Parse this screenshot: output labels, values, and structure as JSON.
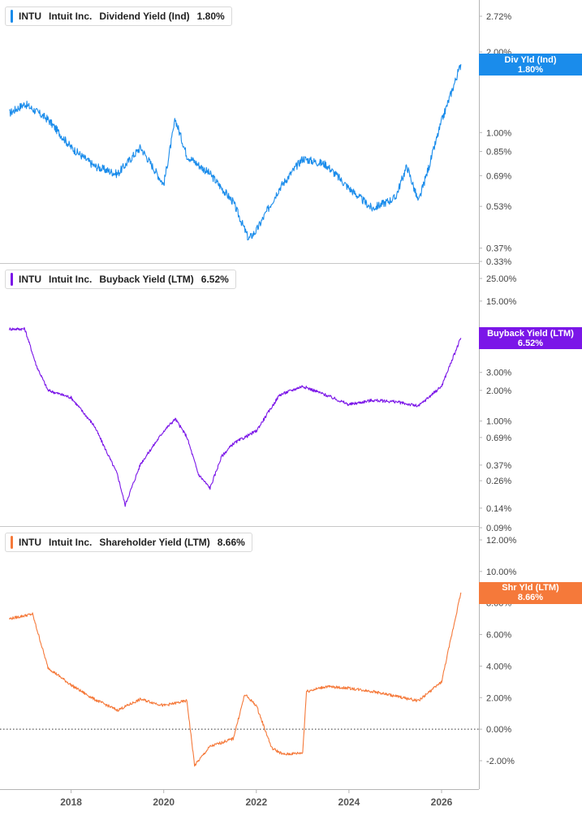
{
  "chart_data": [
    {
      "type": "line",
      "ticker": "INTU",
      "company": "Intuit Inc.",
      "metric": "Dividend Yield (Ind)",
      "current_value": "1.80%",
      "badge_label": "Div Yld (Ind)",
      "badge_value": "1.80%",
      "color": "#1a8ceb",
      "scale": "log",
      "ylim": [
        0.33,
        3.0
      ],
      "y_ticks": [
        "2.72%",
        "2.00%",
        "1.00%",
        "0.85%",
        "0.69%",
        "0.53%",
        "0.37%",
        "0.33%"
      ],
      "x": [
        "2016-09",
        "2017-01",
        "2017-07",
        "2018-01",
        "2018-07",
        "2019-01",
        "2019-07",
        "2020-01",
        "2020-04",
        "2020-07",
        "2021-01",
        "2021-07",
        "2021-11",
        "2022-01",
        "2022-07",
        "2023-01",
        "2023-07",
        "2024-01",
        "2024-07",
        "2025-01",
        "2025-04",
        "2025-07",
        "2025-10",
        "2026-01",
        "2026-06"
      ],
      "values": [
        1.18,
        1.28,
        1.12,
        0.88,
        0.75,
        0.7,
        0.88,
        0.64,
        1.12,
        0.82,
        0.7,
        0.55,
        0.4,
        0.43,
        0.62,
        0.8,
        0.76,
        0.62,
        0.52,
        0.57,
        0.75,
        0.55,
        0.77,
        1.1,
        1.8
      ]
    },
    {
      "type": "line",
      "ticker": "INTU",
      "company": "Intuit Inc.",
      "metric": "Buyback Yield (LTM)",
      "current_value": "6.52%",
      "badge_label": "Buyback Yield (LTM)",
      "badge_value": "6.52%",
      "color": "#7b16e8",
      "scale": "log",
      "ylim": [
        0.09,
        25.0
      ],
      "y_ticks": [
        "25.00%",
        "15.00%",
        "3.00%",
        "2.00%",
        "1.00%",
        "0.69%",
        "0.37%",
        "0.26%",
        "0.14%",
        "0.09%"
      ],
      "x": [
        "2016-09",
        "2017-01",
        "2017-04",
        "2017-07",
        "2018-01",
        "2018-07",
        "2019-01",
        "2019-03",
        "2019-07",
        "2020-01",
        "2020-04",
        "2020-07",
        "2020-10",
        "2021-01",
        "2021-04",
        "2021-07",
        "2022-01",
        "2022-07",
        "2023-01",
        "2023-07",
        "2024-01",
        "2024-07",
        "2025-01",
        "2025-07",
        "2026-01",
        "2026-06"
      ],
      "values": [
        8.0,
        8.0,
        3.5,
        2.0,
        1.7,
        0.9,
        0.3,
        0.15,
        0.38,
        0.8,
        1.05,
        0.7,
        0.3,
        0.22,
        0.45,
        0.6,
        0.8,
        1.8,
        2.2,
        1.8,
        1.45,
        1.6,
        1.55,
        1.4,
        2.2,
        6.52
      ]
    },
    {
      "type": "line",
      "ticker": "INTU",
      "company": "Intuit Inc.",
      "metric": "Shareholder Yield (LTM)",
      "current_value": "8.66%",
      "badge_label": "Shr Yld (LTM)",
      "badge_value": "8.66%",
      "color": "#f5793a",
      "scale": "linear",
      "ylim": [
        -2.8,
        12.0
      ],
      "y_ticks": [
        "12.00%",
        "10.00%",
        "8.00%",
        "6.00%",
        "4.00%",
        "2.00%",
        "0.00%",
        "-2.00%"
      ],
      "x": [
        "2016-09",
        "2017-03",
        "2017-07",
        "2018-01",
        "2018-07",
        "2019-01",
        "2019-07",
        "2020-01",
        "2020-07",
        "2020-09",
        "2021-01",
        "2021-07",
        "2021-10",
        "2022-01",
        "2022-05",
        "2022-08",
        "2023-01",
        "2023-02",
        "2023-07",
        "2024-01",
        "2024-07",
        "2025-01",
        "2025-07",
        "2026-01",
        "2026-06"
      ],
      "values": [
        7.0,
        7.3,
        3.9,
        2.8,
        1.9,
        1.2,
        1.9,
        1.5,
        1.8,
        -2.3,
        -1.1,
        -0.6,
        2.2,
        1.5,
        -1.2,
        -1.6,
        -1.5,
        2.4,
        2.7,
        2.6,
        2.4,
        2.1,
        1.8,
        3.0,
        8.66
      ]
    }
  ],
  "x_axis": {
    "ticks": [
      "2018",
      "2020",
      "2022",
      "2024",
      "2026"
    ]
  }
}
